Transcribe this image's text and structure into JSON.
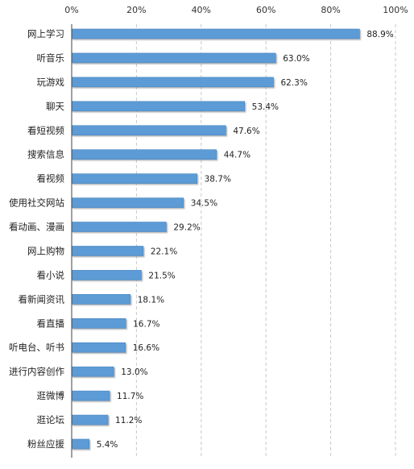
{
  "chart_data": {
    "type": "bar",
    "orientation": "horizontal",
    "categories": [
      "网上学习",
      "听音乐",
      "玩游戏",
      "聊天",
      "看短视频",
      "搜索信息",
      "看视频",
      "使用社交网站",
      "看动画、漫画",
      "网上购物",
      "看小说",
      "看新闻资讯",
      "看直播",
      "听电台、听书",
      "进行内容创作",
      "逛微博",
      "逛论坛",
      "粉丝应援"
    ],
    "values": [
      88.9,
      63.0,
      62.3,
      53.4,
      47.6,
      44.7,
      38.7,
      34.5,
      29.2,
      22.1,
      21.5,
      18.1,
      16.7,
      16.6,
      13.0,
      11.7,
      11.2,
      5.4
    ],
    "value_labels": [
      "88.9%",
      "63.0%",
      "62.3%",
      "53.4%",
      "47.6%",
      "44.7%",
      "38.7%",
      "34.5%",
      "29.2%",
      "22.1%",
      "21.5%",
      "18.1%",
      "16.7%",
      "16.6%",
      "13.0%",
      "11.7%",
      "11.2%",
      "5.4%"
    ],
    "x_ticks": [
      "0%",
      "20%",
      "40%",
      "60%",
      "80%",
      "100%"
    ],
    "xlim": [
      0,
      100
    ],
    "x_axis_position": "top",
    "grid": "vertical dashed",
    "bar_color": "#5b9bd5",
    "title": "",
    "xlabel": "",
    "ylabel": ""
  }
}
